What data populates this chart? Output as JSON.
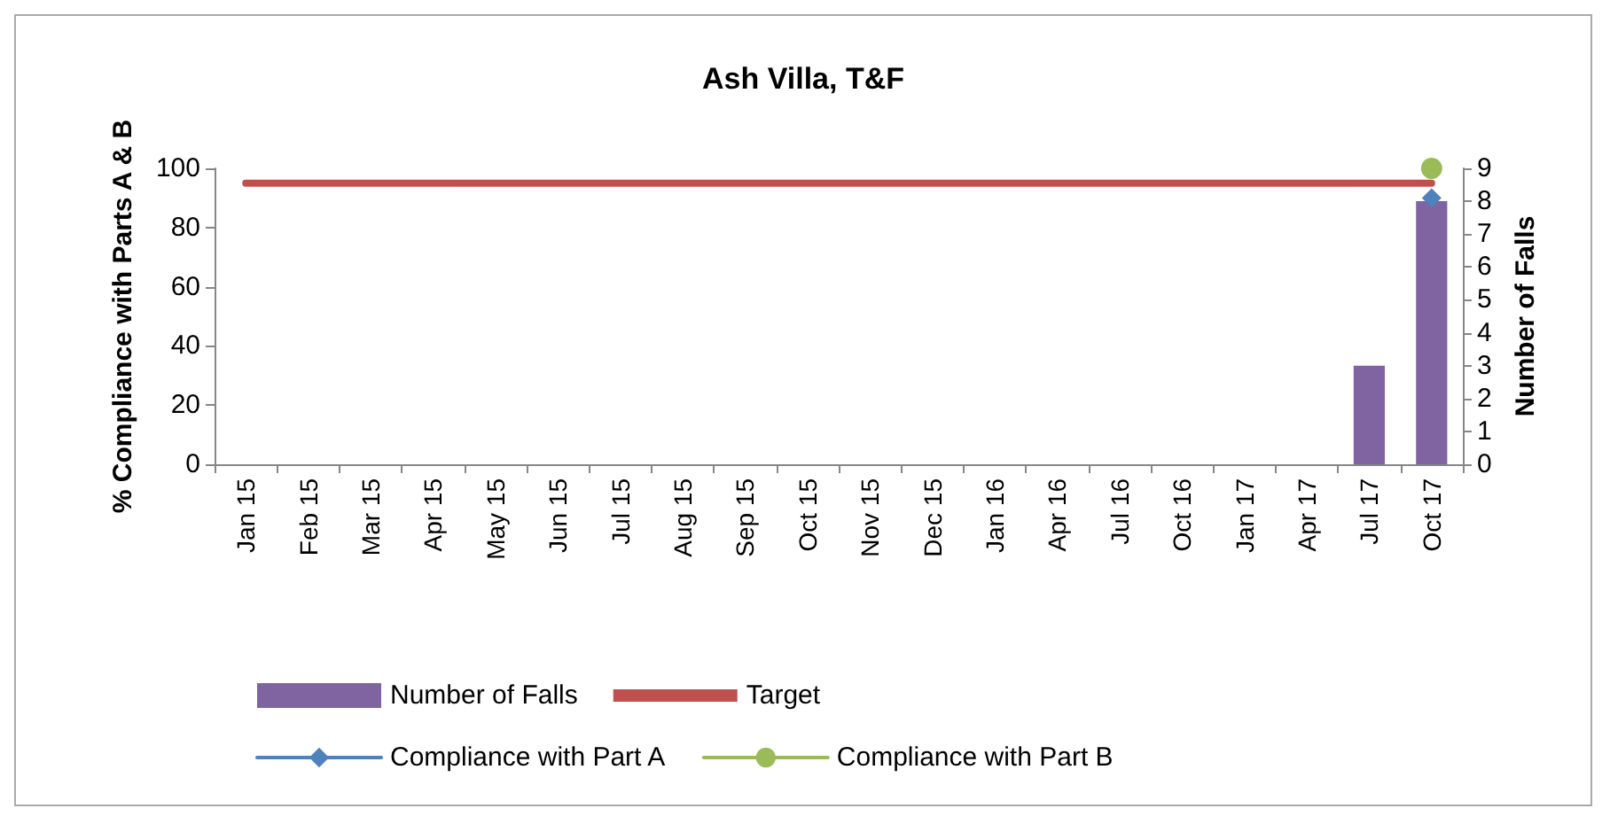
{
  "chart_data": {
    "type": "bar",
    "title": "Ash Villa, T&F",
    "ylabel": "% Compliance with Parts A & B",
    "y2label": "Number of Falls",
    "categories": [
      "Jan 15",
      "Feb 15",
      "Mar 15",
      "Apr 15",
      "May 15",
      "Jun 15",
      "Jul 15",
      "Aug 15",
      "Sep 15",
      "Oct 15",
      "Nov 15",
      "Dec 15",
      "Jan 16",
      "Apr 16",
      "Jul 16",
      "Oct 16",
      "Jan 17",
      "Apr 17",
      "Jul 17",
      "Oct 17"
    ],
    "series": [
      {
        "name": "Number of Falls",
        "axis": "y2",
        "color": "#8064a2",
        "values": [
          0,
          0,
          0,
          0,
          0,
          0,
          0,
          0,
          0,
          0,
          0,
          0,
          0,
          0,
          0,
          0,
          0,
          0,
          3,
          8
        ]
      },
      {
        "name": "Target",
        "type": "line",
        "marker": "none",
        "color": "#c0504d",
        "values": [
          95,
          95,
          95,
          95,
          95,
          95,
          95,
          95,
          95,
          95,
          95,
          95,
          95,
          95,
          95,
          95,
          95,
          95,
          95,
          95
        ]
      },
      {
        "name": "Compliance with Part A",
        "type": "line",
        "marker": "diamond",
        "color": "#4f81bd",
        "values": [
          null,
          null,
          null,
          null,
          null,
          null,
          null,
          null,
          null,
          null,
          null,
          null,
          null,
          null,
          null,
          null,
          null,
          null,
          null,
          90
        ]
      },
      {
        "name": "Compliance with Part B",
        "type": "line",
        "marker": "circle",
        "color": "#9bbb59",
        "values": [
          null,
          null,
          null,
          null,
          null,
          null,
          null,
          null,
          null,
          null,
          null,
          null,
          null,
          null,
          null,
          null,
          null,
          null,
          null,
          100
        ]
      }
    ],
    "ylim": [
      0,
      100
    ],
    "yticks": [
      0,
      20,
      40,
      60,
      80,
      100
    ],
    "y2lim": [
      0,
      9
    ],
    "y2ticks": [
      0,
      1,
      2,
      3,
      4,
      5,
      6,
      7,
      8,
      9
    ],
    "grid": false,
    "legend": "bottom"
  }
}
